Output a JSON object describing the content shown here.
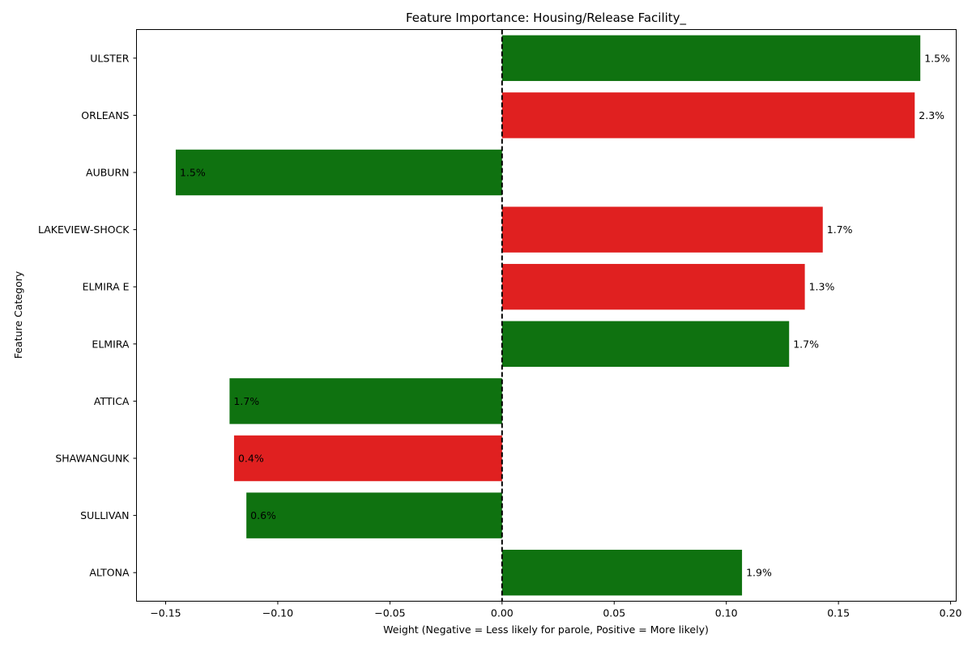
{
  "chart_data": {
    "type": "bar",
    "orientation": "horizontal",
    "title": "Feature Importance: Housing/Release Facility_",
    "xlabel": "Weight (Negative = Less likely for parole, Positive = More likely)",
    "ylabel": "Feature Category",
    "xlim": [
      -0.163,
      0.2025
    ],
    "xticks": [
      -0.15,
      -0.1,
      -0.05,
      0.0,
      0.05,
      0.1,
      0.15,
      0.2
    ],
    "xtick_labels": [
      "−0.15",
      "−0.10",
      "−0.05",
      "0.00",
      "0.05",
      "0.10",
      "0.15",
      "0.20"
    ],
    "zero_line": "dashed",
    "grid": false,
    "legend": "none",
    "categories": [
      "ULSTER",
      "ORLEANS",
      "AUBURN",
      "LAKEVIEW-SHOCK",
      "ELMIRA E",
      "ELMIRA",
      "ATTICA",
      "SHAWANGUNK",
      "SULLIVAN",
      "ALTONA"
    ],
    "values": [
      0.1865,
      0.184,
      -0.1455,
      0.143,
      0.135,
      0.128,
      -0.1215,
      -0.1195,
      -0.114,
      0.107
    ],
    "labels": [
      "1.5%",
      "2.3%",
      "1.5%",
      "1.7%",
      "1.3%",
      "1.7%",
      "1.7%",
      "0.4%",
      "0.6%",
      "1.9%"
    ],
    "colors": [
      "green",
      "red",
      "green",
      "red",
      "red",
      "green",
      "green",
      "red",
      "green",
      "green"
    ],
    "palette": {
      "green": "#0f7210",
      "red": "#e02020"
    }
  }
}
